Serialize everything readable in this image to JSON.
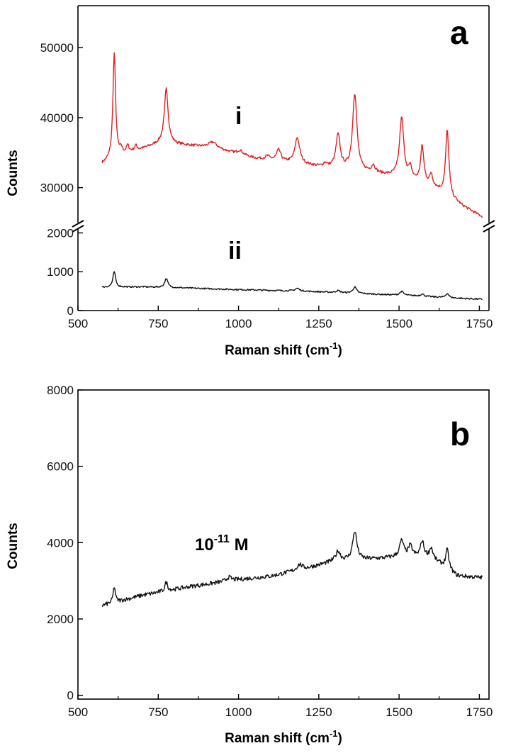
{
  "chart_data": [
    {
      "panel": "a",
      "type": "line",
      "xlabel": "Raman shift (cm",
      "xlabel_sup": "-1",
      "xlabel_end": ")",
      "ylabel": "Counts",
      "xlim": [
        500,
        1780
      ],
      "x_ticks": [
        "500",
        "750",
        "1000",
        "1250",
        "1500",
        "1750"
      ],
      "broken_y_axis": true,
      "upper_ylim": [
        25000,
        56000
      ],
      "upper_y_ticks": [
        "30000",
        "40000",
        "50000"
      ],
      "lower_ylim": [
        0,
        2100
      ],
      "lower_y_ticks": [
        "0",
        "1000",
        "2000"
      ],
      "colors": {
        "i": "#e02020",
        "ii": "#111111"
      },
      "series": [
        {
          "name": "i",
          "segment": "upper",
          "baseline": [
            [
              575,
              33400
            ],
            [
              650,
              34800
            ],
            [
              760,
              36400
            ],
            [
              920,
              35700
            ],
            [
              1050,
              34200
            ],
            [
              1150,
              33600
            ],
            [
              1250,
              33000
            ],
            [
              1400,
              32200
            ],
            [
              1500,
              31500
            ],
            [
              1600,
              30300
            ],
            [
              1700,
              27300
            ],
            [
              1760,
              25800
            ]
          ],
          "peaks": [
            [
              613,
              15100,
              5
            ],
            [
              635,
              800,
              5
            ],
            [
              655,
              1000,
              5
            ],
            [
              680,
              700,
              5
            ],
            [
              775,
              7800,
              7
            ],
            [
              920,
              800,
              15
            ],
            [
              1005,
              600,
              10
            ],
            [
              1090,
              500,
              8
            ],
            [
              1125,
              1600,
              8
            ],
            [
              1183,
              3700,
              9
            ],
            [
              1270,
              500,
              6
            ],
            [
              1310,
              4800,
              8
            ],
            [
              1362,
              11000,
              8
            ],
            [
              1420,
              1000,
              7
            ],
            [
              1508,
              8500,
              8
            ],
            [
              1535,
              1500,
              6
            ],
            [
              1572,
              5200,
              6
            ],
            [
              1600,
              1500,
              5
            ],
            [
              1650,
              9400,
              6
            ]
          ]
        },
        {
          "name": "ii",
          "segment": "lower",
          "baseline": [
            [
              575,
              600
            ],
            [
              700,
              610
            ],
            [
              800,
              590
            ],
            [
              1000,
              540
            ],
            [
              1200,
              500
            ],
            [
              1400,
              430
            ],
            [
              1550,
              380
            ],
            [
              1650,
              330
            ],
            [
              1760,
              290
            ]
          ],
          "peaks": [
            [
              613,
              400,
              5
            ],
            [
              775,
              230,
              6
            ],
            [
              1183,
              70,
              8
            ],
            [
              1310,
              50,
              8
            ],
            [
              1362,
              160,
              7
            ],
            [
              1508,
              100,
              7
            ],
            [
              1572,
              60,
              6
            ],
            [
              1650,
              110,
              6
            ]
          ]
        }
      ]
    },
    {
      "panel": "b",
      "type": "line",
      "xlabel": "Raman shift (cm",
      "xlabel_sup": "-1",
      "xlabel_end": ")",
      "ylabel": "Counts",
      "xlim": [
        500,
        1780
      ],
      "ylim": [
        -100,
        8000
      ],
      "x_ticks": [
        "500",
        "750",
        "1000",
        "1250",
        "1500",
        "1750"
      ],
      "y_ticks": [
        "0",
        "2000",
        "4000",
        "6000",
        "8000"
      ],
      "colors": {
        "line": "#111111"
      },
      "series": [
        {
          "name": "10-11 M",
          "baseline": [
            [
              575,
              2350
            ],
            [
              700,
              2620
            ],
            [
              850,
              2850
            ],
            [
              1000,
              3030
            ],
            [
              1100,
              3120
            ],
            [
              1200,
              3300
            ],
            [
              1300,
              3520
            ],
            [
              1400,
              3560
            ],
            [
              1500,
              3620
            ],
            [
              1600,
              3600
            ],
            [
              1680,
              3130
            ],
            [
              1760,
              3080
            ]
          ],
          "peaks": [
            [
              613,
              420,
              4
            ],
            [
              775,
              230,
              5
            ],
            [
              970,
              100,
              10
            ],
            [
              1190,
              150,
              10
            ],
            [
              1310,
              250,
              8
            ],
            [
              1362,
              750,
              8
            ],
            [
              1508,
              420,
              8
            ],
            [
              1535,
              280,
              8
            ],
            [
              1572,
              420,
              7
            ],
            [
              1600,
              250,
              6
            ],
            [
              1650,
              500,
              6
            ]
          ]
        }
      ]
    }
  ],
  "labels": {
    "panel_a": "a",
    "panel_b": "b",
    "trace_i": "i",
    "trace_ii": "ii",
    "conc_base": "10",
    "conc_exp": "-11",
    "conc_unit": " M"
  }
}
